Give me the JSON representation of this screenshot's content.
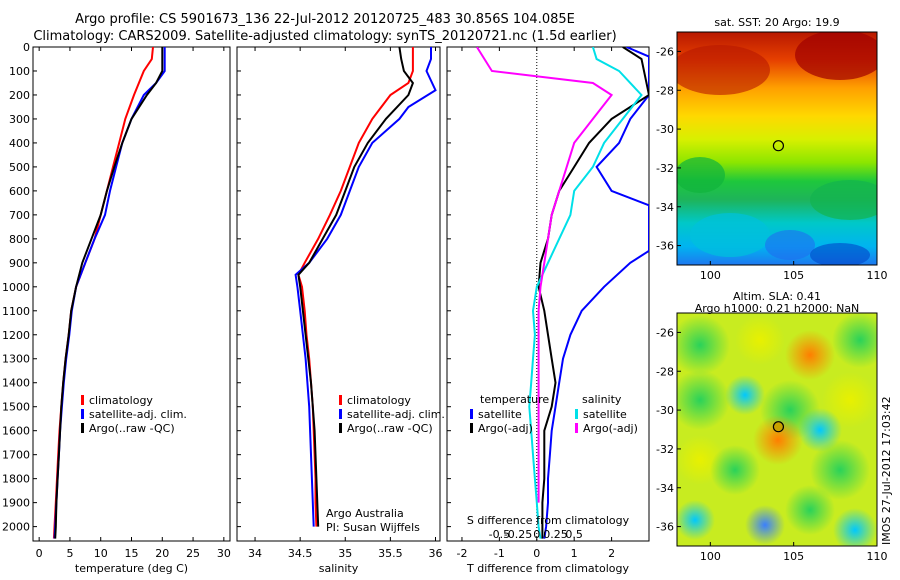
{
  "header": {
    "line1": "Argo profile: CS 5901673_136 22-Jul-2012 20120725_483 30.856S 104.085E",
    "line2": "Climatology: CARS2009. Satellite-adjusted climatology: synTS_20120721.nc (1.5d earlier)"
  },
  "chart_data": [
    {
      "type": "line",
      "xlabel": "temperature (deg C)",
      "ylabel": "",
      "xlim": [
        -1,
        31
      ],
      "ylim": [
        2060,
        0
      ],
      "xticks": [
        0,
        5,
        10,
        15,
        20,
        25,
        30
      ],
      "yticks": [
        0,
        100,
        200,
        300,
        400,
        500,
        600,
        700,
        800,
        900,
        1000,
        1100,
        1200,
        1300,
        1400,
        1500,
        1600,
        1700,
        1800,
        1900,
        2000
      ],
      "legend": [
        "climatology",
        "satellite-adj. clim.",
        "Argo(..raw -QC)"
      ],
      "series": [
        {
          "name": "climatology",
          "color": "#ff0000",
          "points": [
            [
              18.5,
              0
            ],
            [
              18.3,
              50
            ],
            [
              17.0,
              100
            ],
            [
              15.4,
              200
            ],
            [
              14.0,
              300
            ],
            [
              13.0,
              400
            ],
            [
              12.0,
              500
            ],
            [
              11.0,
              600
            ],
            [
              10.0,
              700
            ],
            [
              9.0,
              800
            ],
            [
              7.5,
              900
            ],
            [
              6.0,
              1000
            ],
            [
              5.2,
              1100
            ],
            [
              4.8,
              1200
            ],
            [
              4.3,
              1300
            ],
            [
              3.9,
              1400
            ],
            [
              3.6,
              1500
            ],
            [
              3.3,
              1600
            ],
            [
              3.1,
              1700
            ],
            [
              2.9,
              1800
            ],
            [
              2.7,
              1900
            ],
            [
              2.5,
              2000
            ],
            [
              2.4,
              2050
            ]
          ]
        },
        {
          "name": "satellite-adj. clim.",
          "color": "#0000ff",
          "points": [
            [
              20.4,
              0
            ],
            [
              20.4,
              100
            ],
            [
              19.0,
              150
            ],
            [
              17.0,
              200
            ],
            [
              15.0,
              300
            ],
            [
              13.5,
              400
            ],
            [
              12.5,
              500
            ],
            [
              11.5,
              600
            ],
            [
              10.7,
              700
            ],
            [
              9.0,
              800
            ],
            [
              7.5,
              900
            ],
            [
              6.0,
              1000
            ],
            [
              5.3,
              1100
            ],
            [
              4.9,
              1200
            ],
            [
              4.4,
              1300
            ],
            [
              4.0,
              1400
            ],
            [
              3.7,
              1500
            ],
            [
              3.4,
              1600
            ],
            [
              3.2,
              1700
            ],
            [
              3.0,
              1800
            ],
            [
              2.8,
              1900
            ],
            [
              2.6,
              2000
            ],
            [
              2.5,
              2050
            ]
          ]
        },
        {
          "name": "Argo(..raw -QC)",
          "color": "#000000",
          "points": [
            [
              20.0,
              0
            ],
            [
              20.0,
              100
            ],
            [
              19.0,
              150
            ],
            [
              17.5,
              200
            ],
            [
              15.0,
              300
            ],
            [
              13.5,
              400
            ],
            [
              12.2,
              500
            ],
            [
              11.0,
              600
            ],
            [
              10.0,
              700
            ],
            [
              8.5,
              800
            ],
            [
              7.0,
              900
            ],
            [
              6.0,
              1000
            ],
            [
              5.2,
              1100
            ],
            [
              4.8,
              1200
            ],
            [
              4.3,
              1300
            ],
            [
              3.9,
              1400
            ],
            [
              3.6,
              1500
            ],
            [
              3.4,
              1600
            ],
            [
              3.2,
              1700
            ],
            [
              3.0,
              1800
            ],
            [
              2.8,
              1900
            ],
            [
              2.7,
              2000
            ],
            [
              2.6,
              2050
            ]
          ]
        }
      ]
    },
    {
      "type": "line",
      "xlabel": "salinity",
      "xlim": [
        33.8,
        36.05
      ],
      "ylim": [
        2060,
        0
      ],
      "xticks": [
        34,
        34.5,
        35,
        35.5,
        36
      ],
      "legend": [
        "climatology",
        "satellite-adj. clim.",
        "Argo(..raw -QC)"
      ],
      "annotation": [
        "Argo Australia",
        "PI: Susan Wijffels"
      ],
      "series": [
        {
          "name": "climatology",
          "color": "#ff0000",
          "points": [
            [
              35.75,
              0
            ],
            [
              35.75,
              100
            ],
            [
              35.7,
              150
            ],
            [
              35.5,
              200
            ],
            [
              35.3,
              300
            ],
            [
              35.15,
              400
            ],
            [
              35.05,
              500
            ],
            [
              34.95,
              600
            ],
            [
              34.83,
              700
            ],
            [
              34.7,
              800
            ],
            [
              34.55,
              900
            ],
            [
              34.48,
              950
            ],
            [
              34.52,
              1000
            ],
            [
              34.55,
              1100
            ],
            [
              34.57,
              1200
            ],
            [
              34.6,
              1300
            ],
            [
              34.62,
              1400
            ],
            [
              34.64,
              1500
            ],
            [
              34.65,
              1600
            ],
            [
              34.66,
              1700
            ],
            [
              34.67,
              1800
            ],
            [
              34.67,
              1900
            ],
            [
              34.68,
              2000
            ]
          ]
        },
        {
          "name": "satellite-adj. clim.",
          "color": "#0000ff",
          "points": [
            [
              35.95,
              0
            ],
            [
              35.95,
              50
            ],
            [
              35.9,
              100
            ],
            [
              36.0,
              180
            ],
            [
              35.7,
              250
            ],
            [
              35.6,
              300
            ],
            [
              35.3,
              400
            ],
            [
              35.15,
              500
            ],
            [
              35.05,
              600
            ],
            [
              34.95,
              700
            ],
            [
              34.8,
              800
            ],
            [
              34.6,
              900
            ],
            [
              34.45,
              950
            ],
            [
              34.47,
              1000
            ],
            [
              34.5,
              1100
            ],
            [
              34.53,
              1200
            ],
            [
              34.56,
              1300
            ],
            [
              34.58,
              1400
            ],
            [
              34.6,
              1500
            ],
            [
              34.61,
              1600
            ],
            [
              34.62,
              1700
            ],
            [
              34.63,
              1800
            ],
            [
              34.64,
              1900
            ],
            [
              34.65,
              2000
            ]
          ]
        },
        {
          "name": "Argo(..raw -QC)",
          "color": "#000000",
          "points": [
            [
              35.6,
              0
            ],
            [
              35.62,
              50
            ],
            [
              35.65,
              100
            ],
            [
              35.75,
              150
            ],
            [
              35.7,
              200
            ],
            [
              35.45,
              300
            ],
            [
              35.25,
              400
            ],
            [
              35.1,
              500
            ],
            [
              35.0,
              600
            ],
            [
              34.9,
              700
            ],
            [
              34.75,
              800
            ],
            [
              34.6,
              900
            ],
            [
              34.48,
              950
            ],
            [
              34.5,
              1000
            ],
            [
              34.53,
              1100
            ],
            [
              34.56,
              1200
            ],
            [
              34.59,
              1300
            ],
            [
              34.62,
              1400
            ],
            [
              34.64,
              1500
            ],
            [
              34.66,
              1600
            ],
            [
              34.67,
              1700
            ],
            [
              34.68,
              1800
            ],
            [
              34.69,
              1900
            ],
            [
              34.7,
              2000
            ]
          ]
        }
      ]
    },
    {
      "type": "line",
      "xlabel": "T difference from climatology",
      "top_xlabel": "S difference from climatology",
      "xlim": [
        -2.4,
        3.0
      ],
      "ylim": [
        2060,
        0
      ],
      "xticks": [
        -2,
        -1,
        0,
        1,
        2
      ],
      "top_xticks": [
        "-0.5",
        "-0.25",
        "0",
        "0.25",
        "0.5"
      ],
      "legend_left_title": "temperature",
      "legend_right_title": "salinity",
      "legend": [
        "satellite",
        "Argo(-adj)",
        "satellite",
        "Argo(-adj)"
      ],
      "series": [
        {
          "name": "satellite",
          "color": "#0000ff",
          "points": [
            [
              2.4,
              0
            ],
            [
              3.0,
              40
            ],
            [
              3.0,
              200
            ],
            [
              2.5,
              300
            ],
            [
              2.2,
              400
            ],
            [
              1.6,
              500
            ],
            [
              2.0,
              600
            ],
            [
              3.0,
              660
            ],
            [
              3.0,
              850
            ],
            [
              2.5,
              900
            ],
            [
              1.8,
              1000
            ],
            [
              1.2,
              1100
            ],
            [
              0.9,
              1200
            ],
            [
              0.7,
              1300
            ],
            [
              0.6,
              1400
            ],
            [
              0.5,
              1500
            ],
            [
              0.4,
              1600
            ],
            [
              0.35,
              1700
            ],
            [
              0.3,
              1800
            ],
            [
              0.3,
              1900
            ],
            [
              0.25,
              2000
            ],
            [
              0.2,
              2050
            ]
          ]
        },
        {
          "name": "Argo(-adj)",
          "color": "#000000",
          "points": [
            [
              2.3,
              0
            ],
            [
              2.8,
              50
            ],
            [
              3.0,
              200
            ],
            [
              2.0,
              300
            ],
            [
              1.4,
              400
            ],
            [
              1.0,
              500
            ],
            [
              0.6,
              600
            ],
            [
              0.4,
              700
            ],
            [
              0.3,
              800
            ],
            [
              0.1,
              900
            ],
            [
              0.05,
              1000
            ],
            [
              0.2,
              1100
            ],
            [
              0.3,
              1200
            ],
            [
              0.4,
              1300
            ],
            [
              0.5,
              1400
            ],
            [
              0.4,
              1500
            ],
            [
              0.2,
              1600
            ],
            [
              0.2,
              1700
            ],
            [
              0.2,
              1800
            ],
            [
              0.15,
              1900
            ],
            [
              0.15,
              2000
            ],
            [
              0.15,
              2050
            ]
          ]
        },
        {
          "name": "satellite",
          "color": "#00e0e8",
          "points": [
            [
              1.5,
              0
            ],
            [
              1.6,
              50
            ],
            [
              2.2,
              100
            ],
            [
              2.8,
              200
            ],
            [
              2.3,
              300
            ],
            [
              1.8,
              400
            ],
            [
              1.5,
              500
            ],
            [
              1.0,
              600
            ],
            [
              0.9,
              700
            ],
            [
              0.6,
              800
            ],
            [
              0.3,
              900
            ],
            [
              0.0,
              1000
            ],
            [
              -0.1,
              1100
            ],
            [
              -0.05,
              1200
            ],
            [
              -0.1,
              1300
            ],
            [
              -0.15,
              1400
            ],
            [
              -0.2,
              1500
            ],
            [
              -0.15,
              1600
            ],
            [
              -0.1,
              1700
            ],
            [
              -0.05,
              1800
            ],
            [
              0.0,
              1900
            ],
            [
              0.05,
              2000
            ],
            [
              0.1,
              2050
            ]
          ]
        },
        {
          "name": "Argo(-adj)",
          "color": "#ff00ff",
          "points": [
            [
              -1.6,
              0
            ],
            [
              -1.2,
              100
            ],
            [
              1.5,
              150
            ],
            [
              2.0,
              200
            ],
            [
              1.5,
              300
            ],
            [
              1.0,
              400
            ],
            [
              0.8,
              500
            ],
            [
              0.6,
              600
            ],
            [
              0.4,
              700
            ],
            [
              0.3,
              800
            ],
            [
              0.2,
              900
            ],
            [
              0.1,
              1000
            ],
            [
              0.05,
              1100
            ],
            [
              0.05,
              1200
            ],
            [
              0.05,
              1300
            ],
            [
              0.05,
              1400
            ],
            [
              0.05,
              1500
            ],
            [
              0.05,
              1600
            ],
            [
              0.05,
              1700
            ],
            [
              0.05,
              1800
            ],
            [
              0.05,
              1900
            ]
          ]
        }
      ]
    },
    {
      "type": "heatmap",
      "title": "sat. SST: 20 Argo: 19.9",
      "xlim": [
        98,
        110
      ],
      "ylim": [
        -37,
        -25
      ],
      "xticks": [
        100,
        105,
        110
      ],
      "yticks": [
        -26,
        -28,
        -30,
        -32,
        -34,
        -36
      ],
      "marker": {
        "lon": 104.085,
        "lat": -30.856
      }
    },
    {
      "type": "heatmap",
      "title": "Altim. SLA: 0.41",
      "subtitle": "Argo h1000: 0.21 h2000: NaN",
      "xlim": [
        98,
        110
      ],
      "ylim": [
        -37,
        -25
      ],
      "xticks": [
        100,
        105,
        110
      ],
      "yticks": [
        -26,
        -28,
        -30,
        -32,
        -34,
        -36
      ],
      "marker": {
        "lon": 104.085,
        "lat": -30.856
      }
    }
  ],
  "stamp": "IMOS 27-Jul-2012 17:03:42"
}
